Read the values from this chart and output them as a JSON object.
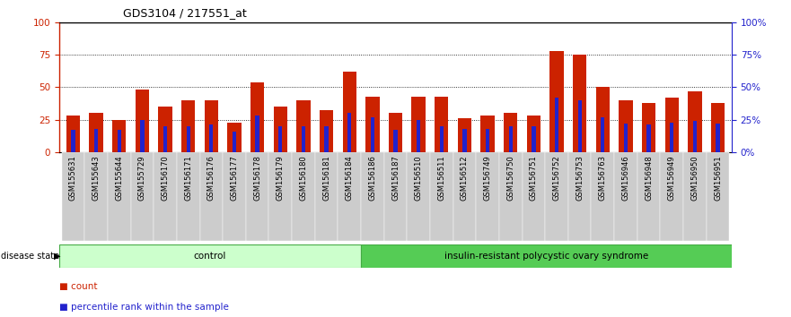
{
  "title": "GDS3104 / 217551_at",
  "samples": [
    "GSM155631",
    "GSM155643",
    "GSM155644",
    "GSM155729",
    "GSM156170",
    "GSM156171",
    "GSM156176",
    "GSM156177",
    "GSM156178",
    "GSM156179",
    "GSM156180",
    "GSM156181",
    "GSM156184",
    "GSM156186",
    "GSM156187",
    "GSM156510",
    "GSM156511",
    "GSM156512",
    "GSM156749",
    "GSM156750",
    "GSM156751",
    "GSM156752",
    "GSM156753",
    "GSM156763",
    "GSM156946",
    "GSM156948",
    "GSM156949",
    "GSM156950",
    "GSM156951"
  ],
  "count_values": [
    28,
    30,
    25,
    48,
    35,
    40,
    40,
    23,
    54,
    35,
    40,
    32,
    62,
    43,
    30,
    43,
    43,
    26,
    28,
    30,
    28,
    78,
    75,
    50,
    40,
    38,
    42,
    47,
    38
  ],
  "percentile_values": [
    17,
    18,
    17,
    25,
    20,
    20,
    21,
    16,
    28,
    20,
    20,
    20,
    30,
    27,
    17,
    25,
    20,
    18,
    18,
    20,
    20,
    42,
    40,
    27,
    22,
    21,
    23,
    24,
    22
  ],
  "control_count": 13,
  "bar_color": "#CC2200",
  "percentile_color": "#2222CC",
  "control_bg": "#CCFFCC",
  "disease_bg": "#55CC55",
  "left_axis_color": "#CC2200",
  "right_axis_color": "#2222CC",
  "background_color": "#FFFFFF",
  "tick_bg": "#CCCCCC"
}
